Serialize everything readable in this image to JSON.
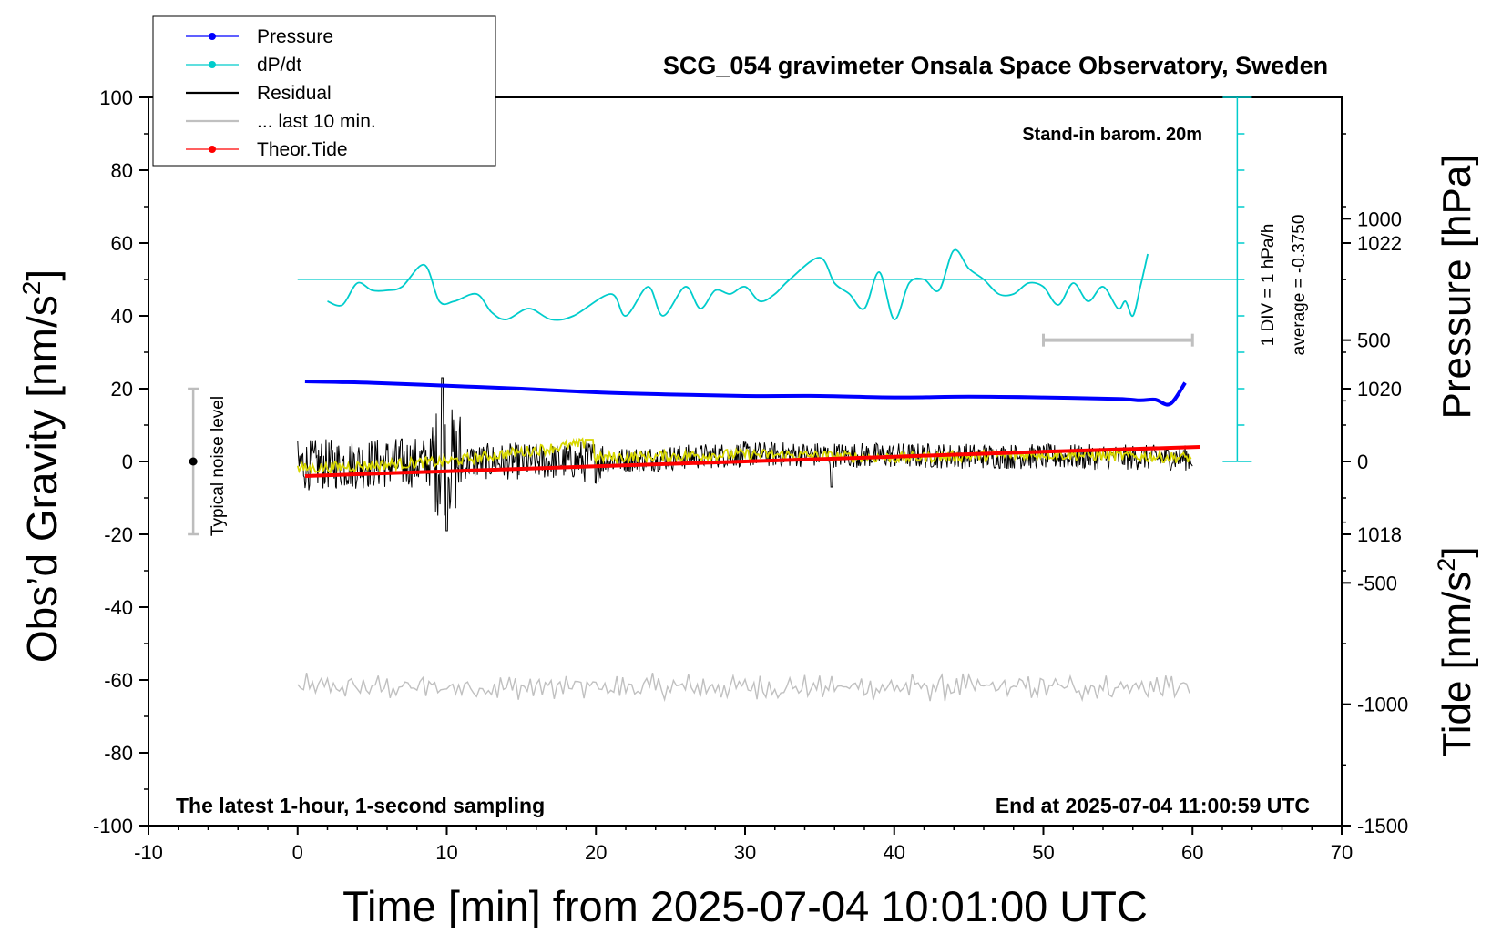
{
  "chart_data": {
    "type": "line",
    "title": "SCG_054 gravimeter Onsala Space Observatory, Sweden",
    "xlabel": "Time [min] from 2025-07-04 10:01:00 UTC",
    "ylabel_left_main": "Obs’d Gravity [nm/s",
    "ylabel_left_sup": "2",
    "ylabel_left_tail": "]",
    "ylabel_right_pressure": "Pressure [hPa]",
    "ylabel_right_tide_main": "Tide [nm/s",
    "ylabel_right_tide_sup": "2",
    "ylabel_right_tide_tail": "]",
    "xlim": [
      -10,
      70
    ],
    "ylim": [
      -100,
      100
    ],
    "pressure_lim": [
      1014,
      1024
    ],
    "tide_lim": [
      -1500,
      1500
    ],
    "x_ticks": [
      "-10",
      "0",
      "10",
      "20",
      "30",
      "40",
      "50",
      "60",
      "70"
    ],
    "y_ticks": [
      "100",
      "80",
      "60",
      "40",
      "20",
      "0",
      "-20",
      "-40",
      "-60",
      "-80",
      "-100"
    ],
    "pressure_ticks": [
      "1022",
      "1020",
      "1018"
    ],
    "tide_ticks": [
      "1000",
      "500",
      "0",
      "-500",
      "-1000",
      "-1500"
    ],
    "grid": false,
    "legend_position": "top-left",
    "legend": [
      {
        "label": "Pressure",
        "color": "#0000ff",
        "marker": true
      },
      {
        "label": "dP/dt",
        "color": "#00cccc",
        "marker": true
      },
      {
        "label": "Residual",
        "color": "#000000",
        "marker": false
      },
      {
        "label": "... last 10 min.",
        "color": "#c0c0c0",
        "marker": false
      },
      {
        "label": "Theor.Tide",
        "color": "#ff0000",
        "marker": true
      }
    ],
    "annotations": {
      "barometer": "Stand-in barom. 20m",
      "scale_div": "1 DIV = 1 hPa/h",
      "average": "average = -0.3750",
      "noise_label": "Typical noise level",
      "latest": "The latest 1-hour, 1-second sampling",
      "end_at": "End at 2025-07-04 11:00:59 UTC"
    },
    "noise_level_bar": {
      "x": -7,
      "center": 0,
      "range": [
        -20,
        20
      ]
    },
    "last10_bar": {
      "x_range": [
        50,
        60
      ],
      "tide_value": 500
    },
    "series": [
      {
        "name": "Pressure",
        "axis": "pressure_hPa",
        "color": "#0000ff",
        "x": [
          0.5,
          5,
          10,
          15,
          20,
          25,
          30,
          35,
          40,
          45,
          50,
          55,
          56.5,
          57.5,
          58.5,
          59.5
        ],
        "values": [
          1020.1,
          1020.08,
          1020.04,
          1020.0,
          1019.95,
          1019.92,
          1019.9,
          1019.9,
          1019.88,
          1019.89,
          1019.88,
          1019.86,
          1019.84,
          1019.85,
          1019.79,
          1020.08
        ]
      },
      {
        "name": "dP/dt",
        "axis": "gravity_left",
        "color": "#00cccc",
        "x": [
          2,
          3,
          4,
          5,
          6,
          7,
          8.5,
          9.5,
          10.5,
          12,
          13,
          14,
          15.5,
          17,
          18.5,
          21,
          22,
          23.5,
          24.5,
          26,
          27,
          28,
          29,
          30,
          31,
          32,
          33,
          35,
          36,
          37,
          38,
          39,
          40,
          41,
          42,
          43,
          44,
          45,
          46,
          47,
          48,
          49,
          50,
          51,
          52,
          53,
          54,
          55,
          55.5,
          56,
          56.5,
          57
        ],
        "values": [
          44,
          43,
          49,
          47,
          47,
          48,
          54,
          44,
          44,
          46,
          41,
          39,
          42,
          39,
          40,
          46,
          40,
          48,
          40,
          48,
          42,
          47,
          46,
          48,
          44,
          46,
          50,
          56,
          49,
          46,
          42,
          52,
          39,
          49,
          50,
          47,
          58,
          53,
          50,
          46,
          46,
          49,
          48,
          43,
          49,
          44,
          48,
          42,
          44,
          40,
          48,
          57
        ]
      },
      {
        "name": "dP/dt average",
        "axis": "gravity_left",
        "color": "#00cccc",
        "x": [
          0,
          63
        ],
        "values": [
          50,
          50
        ]
      },
      {
        "name": "Residual",
        "axis": "gravity_left",
        "color": "#000000",
        "x": [
          0,
          5,
          9.7,
          10,
          20,
          30,
          40,
          60
        ],
        "values": [
          0,
          0,
          23,
          -19,
          0,
          2,
          1,
          2
        ]
      },
      {
        "name": "Residual smoothed",
        "axis": "gravity_left",
        "color": "#d8d800",
        "x": [
          0,
          10,
          19.5,
          20,
          30,
          40,
          50,
          60
        ],
        "values": [
          -2,
          0,
          5,
          1,
          2,
          1,
          2,
          1
        ]
      },
      {
        "name": "Theor.Tide",
        "axis": "tide",
        "color": "#ff0000",
        "x": [
          0.5,
          10,
          20,
          30,
          40,
          50,
          60.5
        ],
        "values": [
          -60,
          -40,
          -20,
          0,
          20,
          40,
          60
        ]
      },
      {
        "name": "... last 10 min.",
        "axis": "gravity_left",
        "color": "#c0c0c0",
        "x": [
          0,
          60
        ],
        "values": [
          -62,
          -62
        ]
      }
    ]
  }
}
